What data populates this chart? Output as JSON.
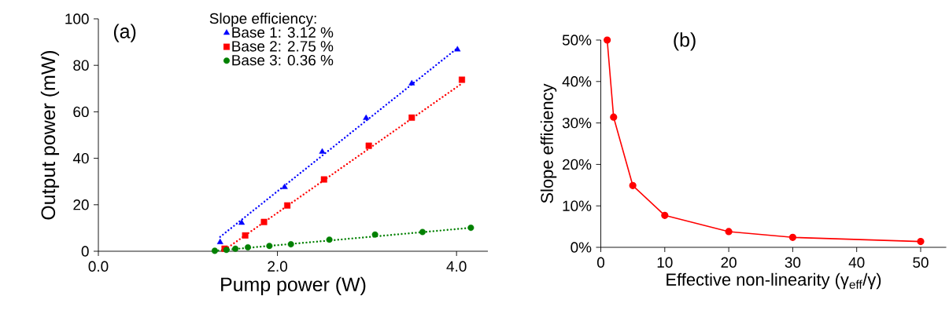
{
  "chart_data": [
    {
      "type": "scatter",
      "xlabel": "Pump power (W)",
      "ylabel": "Output power (mW)",
      "legend_title": "Slope efficiency:",
      "legend": "top",
      "annotations": [
        "(a)"
      ],
      "xlim": [
        0,
        4.35
      ],
      "ylim": [
        0,
        100
      ],
      "xticks": [
        {
          "value": 0,
          "label": "0.0"
        },
        {
          "value": 2,
          "label": "2.0"
        },
        {
          "value": 4,
          "label": "4.0"
        }
      ],
      "yticks": [
        0,
        20,
        40,
        60,
        80,
        100
      ],
      "series": [
        {
          "name": "Base 1: 3.12 %",
          "color": "#0000ff",
          "marker": "triangle",
          "x": [
            1.36,
            1.6,
            2.08,
            2.5,
            2.99,
            3.5,
            4.01
          ],
          "values": [
            3.9,
            12.2,
            27.6,
            42.8,
            57.3,
            72.2,
            86.8
          ]
        },
        {
          "name": "Base 2: 2.75 %",
          "color": "#ff0000",
          "marker": "square",
          "x": [
            1.41,
            1.64,
            1.85,
            2.11,
            2.52,
            3.02,
            3.5,
            4.06
          ],
          "values": [
            1.1,
            6.8,
            12.6,
            19.7,
            30.9,
            45.4,
            57.5,
            73.8
          ]
        },
        {
          "name": "Base 3: 0.36 %",
          "color": "#008000",
          "marker": "circle",
          "x": [
            1.3,
            1.43,
            1.53,
            1.67,
            1.91,
            2.15,
            2.58,
            3.09,
            3.62,
            4.16
          ],
          "values": [
            0.2,
            0.6,
            1.1,
            1.7,
            2.3,
            3.0,
            5.0,
            7.2,
            8.3,
            10.1
          ]
        },
        {
          "type": "line",
          "color": "#0000ff",
          "marker": "none",
          "line_style": "dotted",
          "x": [
            1.36,
            4.01
          ],
          "values": [
            6.2,
            87.4
          ]
        },
        {
          "type": "line",
          "color": "#ff0000",
          "marker": "none",
          "line_style": "dotted",
          "x": [
            1.45,
            4.06
          ],
          "values": [
            1.7,
            72.2
          ]
        },
        {
          "type": "line",
          "color": "#008000",
          "marker": "none",
          "line_style": "dotted",
          "x": [
            1.3,
            4.16
          ],
          "values": [
            0.2,
            10.1
          ]
        }
      ]
    },
    {
      "type": "line",
      "xlabel": "Effective non-linearity (γ$_{eff}$/γ)",
      "ylabel": "Slope efficiency",
      "annotations": [
        "(b)"
      ],
      "marker": "circle",
      "line_style": "solid",
      "xlim": [
        0,
        54
      ],
      "ylim": [
        0,
        50
      ],
      "xticks": [
        0,
        10,
        20,
        30,
        40,
        50
      ],
      "yticks": [
        {
          "value": 0,
          "label": "0%"
        },
        {
          "value": 10,
          "label": "10%"
        },
        {
          "value": 20,
          "label": "20%"
        },
        {
          "value": 30,
          "label": "30%"
        },
        {
          "value": 40,
          "label": "40%"
        },
        {
          "value": 50,
          "label": "50%"
        }
      ],
      "series": [
        {
          "color": "#ff0000",
          "x": [
            1,
            2,
            5,
            10,
            20,
            30,
            50
          ],
          "values": [
            50,
            31.4,
            14.9,
            7.7,
            3.8,
            2.4,
            1.4
          ]
        }
      ]
    }
  ]
}
